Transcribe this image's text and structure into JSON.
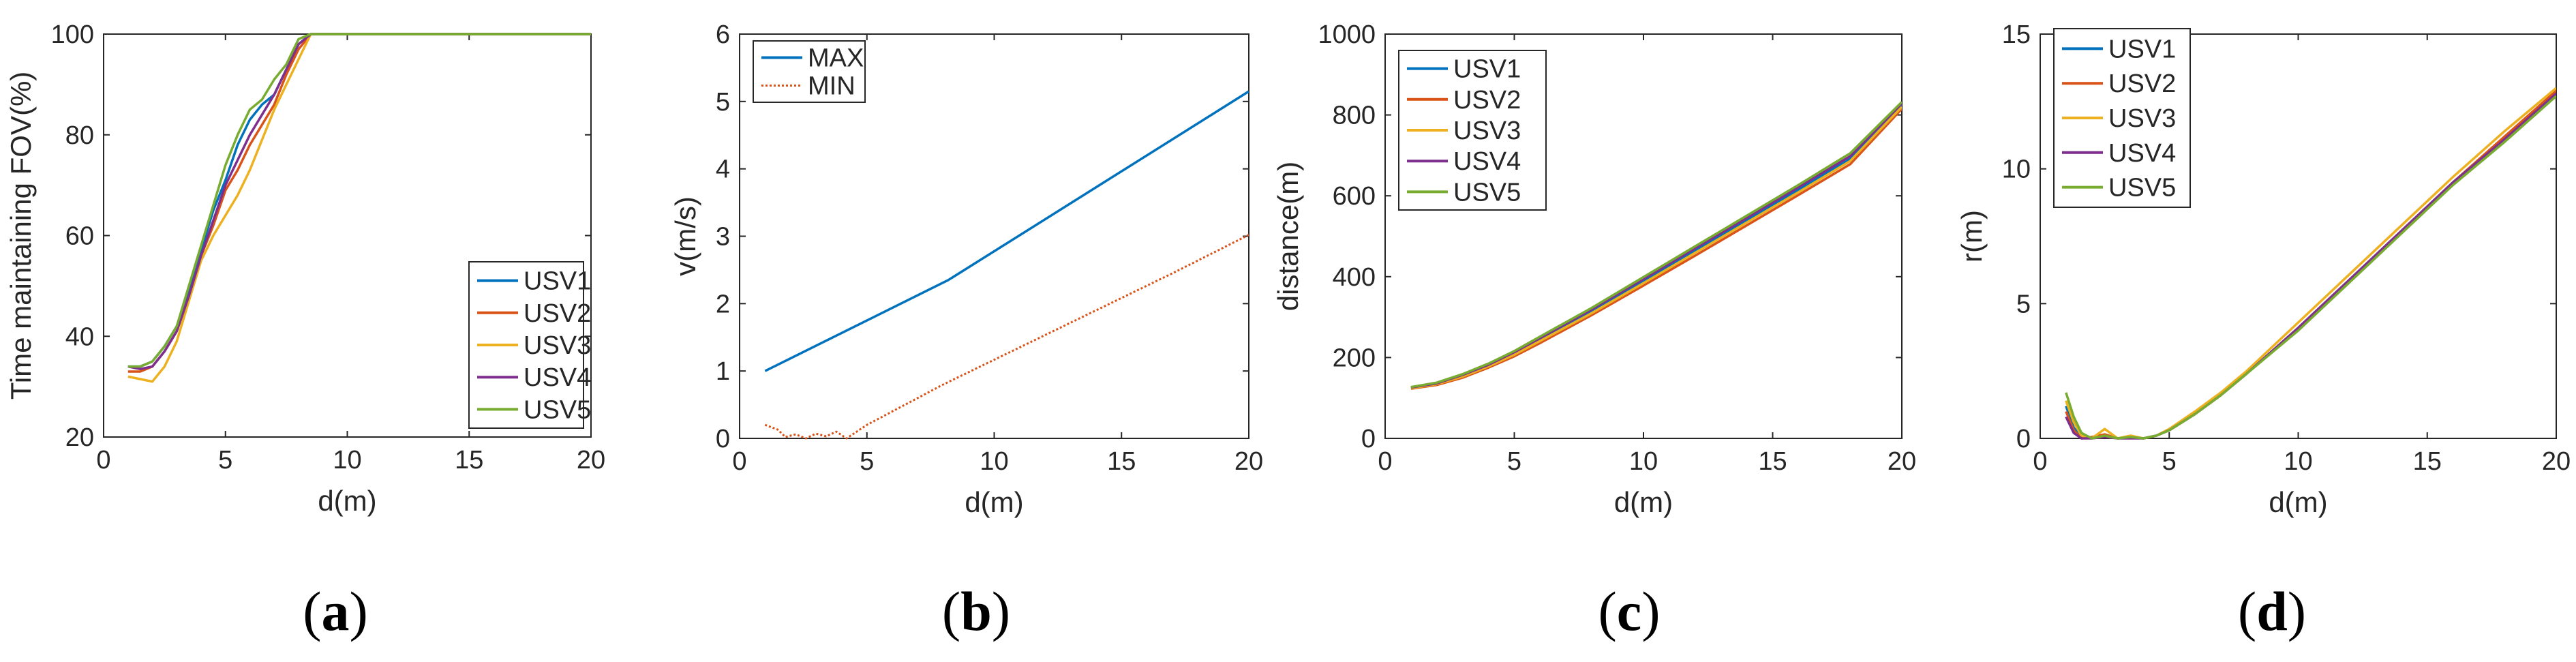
{
  "figure": {
    "captions": [
      "(a)",
      "(b)",
      "(c)",
      "(d)"
    ]
  },
  "colors": {
    "USV1": "#0072BD",
    "USV2": "#D95319",
    "USV3": "#EDB120",
    "USV4": "#7E2F8E",
    "USV5": "#77AC30",
    "MAX": "#0072BD",
    "MIN": "#D95319"
  },
  "chart_data": [
    {
      "id": "a",
      "type": "line",
      "title": "",
      "xlabel": "d(m)",
      "ylabel": "Time maintaining FOV(%)",
      "xlim": [
        0,
        20
      ],
      "ylim": [
        20,
        100
      ],
      "xticks": [
        0,
        5,
        10,
        15,
        20
      ],
      "yticks": [
        20,
        40,
        60,
        80,
        100
      ],
      "legend_position": "bottom-right",
      "series": [
        {
          "name": "USV1",
          "x": [
            1,
            1.5,
            2,
            2.5,
            3,
            3.5,
            4,
            4.5,
            5,
            5.5,
            6,
            6.5,
            7,
            7.5,
            8,
            8.5,
            9,
            10,
            12,
            14,
            16,
            18,
            20
          ],
          "y": [
            34,
            34,
            35,
            38,
            42,
            49,
            57,
            65,
            71,
            78,
            83,
            86,
            88,
            93,
            98,
            100,
            100,
            100,
            100,
            100,
            100,
            100,
            100
          ]
        },
        {
          "name": "USV2",
          "x": [
            1,
            1.5,
            2,
            2.5,
            3,
            3.5,
            4,
            4.5,
            5,
            5.5,
            6,
            6.5,
            7,
            7.5,
            8,
            8.5,
            9,
            10,
            12,
            14,
            16,
            18,
            20
          ],
          "y": [
            33,
            33,
            34,
            37,
            41,
            48,
            56,
            62,
            69,
            73,
            78,
            82,
            86,
            92,
            97,
            100,
            100,
            100,
            100,
            100,
            100,
            100,
            100
          ]
        },
        {
          "name": "USV3",
          "x": [
            1,
            1.5,
            2,
            2.5,
            3,
            3.5,
            4,
            4.5,
            5,
            5.5,
            6,
            6.5,
            7,
            7.5,
            8,
            8.5,
            9,
            10,
            12,
            14,
            16,
            18,
            20
          ],
          "y": [
            32,
            31.5,
            31,
            34,
            39,
            47,
            55,
            60,
            64,
            68,
            73,
            79,
            85,
            90,
            95,
            100,
            100,
            100,
            100,
            100,
            100,
            100,
            100
          ]
        },
        {
          "name": "USV4",
          "x": [
            1,
            1.5,
            2,
            2.5,
            3,
            3.5,
            4,
            4.5,
            5,
            5.5,
            6,
            6.5,
            7,
            7.5,
            8,
            8.5,
            9,
            10,
            12,
            14,
            16,
            18,
            20
          ],
          "y": [
            34,
            33.5,
            34,
            37,
            41,
            48,
            56,
            63,
            70,
            75,
            80,
            84,
            88,
            93,
            98,
            100,
            100,
            100,
            100,
            100,
            100,
            100,
            100
          ]
        },
        {
          "name": "USV5",
          "x": [
            1,
            1.5,
            2,
            2.5,
            3,
            3.5,
            4,
            4.5,
            5,
            5.5,
            6,
            6.5,
            7,
            7.5,
            8,
            8.5,
            9,
            10,
            12,
            14,
            16,
            18,
            20
          ],
          "y": [
            34,
            34,
            35,
            38,
            42,
            50,
            58,
            66,
            74,
            80,
            85,
            87,
            91,
            94,
            99,
            100,
            100,
            100,
            100,
            100,
            100,
            100,
            100
          ]
        }
      ]
    },
    {
      "id": "b",
      "type": "line",
      "title": "",
      "xlabel": "d(m)",
      "ylabel": "v(m/s)",
      "xlim": [
        0,
        20
      ],
      "ylim": [
        0,
        6
      ],
      "xticks": [
        0,
        5,
        10,
        15,
        20
      ],
      "yticks": [
        0,
        1,
        2,
        3,
        4,
        5,
        6
      ],
      "legend_position": "top-left",
      "series": [
        {
          "name": "MAX",
          "style": "solid",
          "x": [
            1,
            8.2,
            20
          ],
          "y": [
            1.0,
            2.35,
            5.15
          ]
        },
        {
          "name": "MIN",
          "style": "dotted",
          "x": [
            1,
            1.5,
            1.8,
            2.2,
            2.6,
            3.0,
            3.4,
            3.8,
            4.2,
            5,
            8,
            11,
            14,
            17,
            20
          ],
          "y": [
            0.2,
            0.13,
            0.02,
            0.06,
            0.0,
            0.07,
            0.03,
            0.1,
            0.0,
            0.2,
            0.8,
            1.35,
            1.9,
            2.45,
            3.02
          ]
        }
      ]
    },
    {
      "id": "c",
      "type": "line",
      "title": "",
      "xlabel": "d(m)",
      "ylabel": "distance(m)",
      "xlim": [
        0,
        20
      ],
      "ylim": [
        0,
        1000
      ],
      "xticks": [
        0,
        5,
        10,
        15,
        20
      ],
      "yticks": [
        0,
        200,
        400,
        600,
        800,
        1000
      ],
      "legend_position": "top-left",
      "series": [
        {
          "name": "USV1",
          "x": [
            1,
            2,
            3,
            4,
            5,
            6,
            8,
            10,
            12,
            14,
            16,
            18,
            20
          ],
          "y": [
            125,
            135,
            155,
            180,
            210,
            245,
            315,
            390,
            465,
            540,
            615,
            692,
            825
          ]
        },
        {
          "name": "USV2",
          "x": [
            1,
            2,
            3,
            4,
            5,
            6,
            8,
            10,
            12,
            14,
            16,
            18,
            20
          ],
          "y": [
            123,
            132,
            150,
            175,
            203,
            236,
            305,
            378,
            452,
            527,
            602,
            678,
            815
          ]
        },
        {
          "name": "USV3",
          "x": [
            1,
            2,
            3,
            4,
            5,
            6,
            8,
            10,
            12,
            14,
            16,
            18,
            20
          ],
          "y": [
            124,
            134,
            153,
            178,
            207,
            241,
            310,
            384,
            459,
            534,
            609,
            686,
            820
          ]
        },
        {
          "name": "USV4",
          "x": [
            1,
            2,
            3,
            4,
            5,
            6,
            8,
            10,
            12,
            14,
            16,
            18,
            20
          ],
          "y": [
            126,
            136,
            157,
            182,
            213,
            248,
            319,
            394,
            470,
            545,
            621,
            698,
            828
          ]
        },
        {
          "name": "USV5",
          "x": [
            1,
            2,
            3,
            4,
            5,
            6,
            8,
            10,
            12,
            14,
            16,
            18,
            20
          ],
          "y": [
            127,
            138,
            159,
            185,
            216,
            252,
            323,
            399,
            475,
            551,
            627,
            705,
            832
          ]
        }
      ]
    },
    {
      "id": "d",
      "type": "line",
      "title": "",
      "xlabel": "d(m)",
      "ylabel": "r(m)",
      "xlim": [
        0,
        20
      ],
      "ylim": [
        0,
        15
      ],
      "xticks": [
        0,
        5,
        10,
        15,
        20
      ],
      "yticks": [
        0,
        5,
        10,
        15
      ],
      "legend_position": "top-left",
      "series": [
        {
          "name": "USV1",
          "x": [
            1,
            1.3,
            1.6,
            2,
            2.5,
            3,
            3.5,
            4,
            4.5,
            5,
            6,
            7,
            8,
            10,
            12,
            14,
            16,
            18,
            20
          ],
          "y": [
            1.2,
            0.4,
            0.05,
            0.0,
            0.1,
            0.0,
            0.05,
            0.0,
            0.1,
            0.3,
            0.9,
            1.6,
            2.4,
            4.1,
            5.9,
            7.7,
            9.5,
            11.1,
            12.8
          ]
        },
        {
          "name": "USV2",
          "x": [
            1,
            1.3,
            1.6,
            2,
            2.5,
            3,
            3.5,
            4,
            4.5,
            5,
            6,
            7,
            8,
            10,
            12,
            14,
            16,
            18,
            20
          ],
          "y": [
            1.0,
            0.3,
            0.0,
            0.05,
            0.15,
            0.0,
            0.05,
            0.0,
            0.1,
            0.3,
            0.9,
            1.6,
            2.4,
            4.1,
            5.9,
            7.7,
            9.5,
            11.2,
            12.9
          ]
        },
        {
          "name": "USV3",
          "x": [
            1,
            1.3,
            1.6,
            2,
            2.5,
            3,
            3.5,
            4,
            4.5,
            5,
            6,
            7,
            8,
            10,
            12,
            14,
            16,
            18,
            20
          ],
          "y": [
            1.4,
            0.6,
            0.1,
            0.0,
            0.35,
            0.0,
            0.1,
            0.0,
            0.1,
            0.35,
            1.0,
            1.7,
            2.5,
            4.3,
            6.1,
            7.9,
            9.7,
            11.4,
            13.0
          ]
        },
        {
          "name": "USV4",
          "x": [
            1,
            1.3,
            1.6,
            2,
            2.5,
            3,
            3.5,
            4,
            4.5,
            5,
            6,
            7,
            8,
            10,
            12,
            14,
            16,
            18,
            20
          ],
          "y": [
            0.8,
            0.2,
            0.0,
            0.0,
            0.05,
            0.0,
            0.0,
            0.0,
            0.1,
            0.3,
            0.9,
            1.6,
            2.4,
            4.1,
            5.9,
            7.7,
            9.5,
            11.1,
            12.8
          ]
        },
        {
          "name": "USV5",
          "x": [
            1,
            1.3,
            1.6,
            2,
            2.5,
            3,
            3.5,
            4,
            4.5,
            5,
            6,
            7,
            8,
            10,
            12,
            14,
            16,
            18,
            20
          ],
          "y": [
            1.7,
            0.8,
            0.2,
            0.0,
            0.1,
            0.0,
            0.05,
            0.0,
            0.1,
            0.3,
            0.9,
            1.6,
            2.4,
            4.0,
            5.8,
            7.6,
            9.4,
            11.0,
            12.7
          ]
        }
      ]
    }
  ]
}
